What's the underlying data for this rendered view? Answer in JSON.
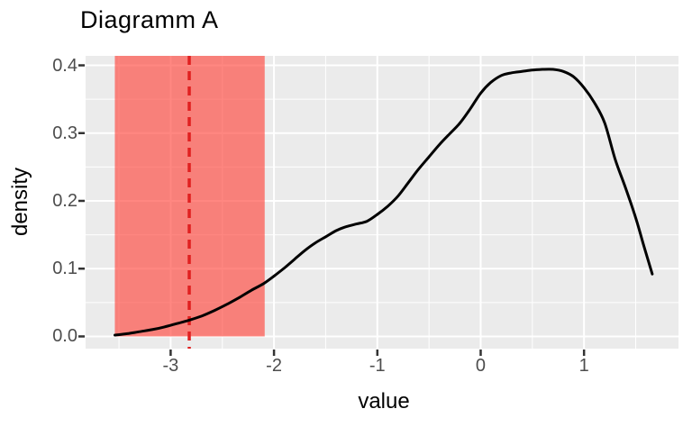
{
  "chart_data": {
    "type": "line",
    "subtype": "density-plot",
    "title": "Diagramm A",
    "xlabel": "value",
    "ylabel": "density",
    "x_domain": [
      -3.823,
      1.914
    ],
    "y_domain": [
      -0.018,
      0.414
    ],
    "grid": true,
    "legend": "none",
    "x_ticks": [
      {
        "value": -3,
        "label": "-3"
      },
      {
        "value": -2,
        "label": "-2"
      },
      {
        "value": -1,
        "label": "-1"
      },
      {
        "value": 0,
        "label": "0"
      },
      {
        "value": 1,
        "label": "1"
      }
    ],
    "y_ticks": [
      {
        "value": 0.0,
        "label": "0.0"
      },
      {
        "value": 0.1,
        "label": "0.1"
      },
      {
        "value": 0.2,
        "label": "0.2"
      },
      {
        "value": 0.3,
        "label": "0.3"
      },
      {
        "value": 0.4,
        "label": "0.4"
      }
    ],
    "x_minor": [
      -3.5,
      -2.5,
      -1.5,
      -0.5,
      0.5,
      1.5
    ],
    "y_minor": [
      0.05,
      0.15,
      0.25,
      0.35
    ],
    "series": [
      {
        "name": "density",
        "points": [
          [
            -3.54,
            0.002
          ],
          [
            -3.42,
            0.004
          ],
          [
            -3.3,
            0.007
          ],
          [
            -3.18,
            0.01
          ],
          [
            -3.06,
            0.014
          ],
          [
            -2.94,
            0.019
          ],
          [
            -2.82,
            0.024
          ],
          [
            -2.7,
            0.03
          ],
          [
            -2.58,
            0.038
          ],
          [
            -2.46,
            0.047
          ],
          [
            -2.34,
            0.057
          ],
          [
            -2.22,
            0.068
          ],
          [
            -2.1,
            0.078
          ],
          [
            -2.0,
            0.089
          ],
          [
            -1.9,
            0.101
          ],
          [
            -1.8,
            0.114
          ],
          [
            -1.7,
            0.127
          ],
          [
            -1.6,
            0.138
          ],
          [
            -1.5,
            0.147
          ],
          [
            -1.4,
            0.156
          ],
          [
            -1.3,
            0.162
          ],
          [
            -1.2,
            0.166
          ],
          [
            -1.1,
            0.17
          ],
          [
            -1.0,
            0.18
          ],
          [
            -0.9,
            0.192
          ],
          [
            -0.8,
            0.207
          ],
          [
            -0.7,
            0.227
          ],
          [
            -0.6,
            0.247
          ],
          [
            -0.5,
            0.265
          ],
          [
            -0.4,
            0.283
          ],
          [
            -0.3,
            0.299
          ],
          [
            -0.2,
            0.315
          ],
          [
            -0.1,
            0.336
          ],
          [
            0.0,
            0.359
          ],
          [
            0.1,
            0.375
          ],
          [
            0.2,
            0.385
          ],
          [
            0.3,
            0.389
          ],
          [
            0.4,
            0.391
          ],
          [
            0.5,
            0.393
          ],
          [
            0.6,
            0.394
          ],
          [
            0.7,
            0.394
          ],
          [
            0.8,
            0.391
          ],
          [
            0.9,
            0.383
          ],
          [
            1.0,
            0.367
          ],
          [
            1.1,
            0.345
          ],
          [
            1.2,
            0.315
          ],
          [
            1.3,
            0.262
          ],
          [
            1.4,
            0.22
          ],
          [
            1.5,
            0.175
          ],
          [
            1.58,
            0.133
          ],
          [
            1.66,
            0.092
          ]
        ]
      }
    ],
    "shaded_region": {
      "xmin": -3.54,
      "xmax": -2.09,
      "ymin": 0.0,
      "ymax": 0.414
    },
    "vline": {
      "x": -2.82,
      "style": "dashed"
    },
    "colors": {
      "panel_bg": "#EBEBEB",
      "grid": "#FFFFFF",
      "curve": "#000000",
      "band": "rgba(255,70,62,0.65)",
      "vline": "#E02020",
      "tick_label": "#4D4D4D",
      "tick_mark": "#333333",
      "text": "#000000"
    }
  }
}
